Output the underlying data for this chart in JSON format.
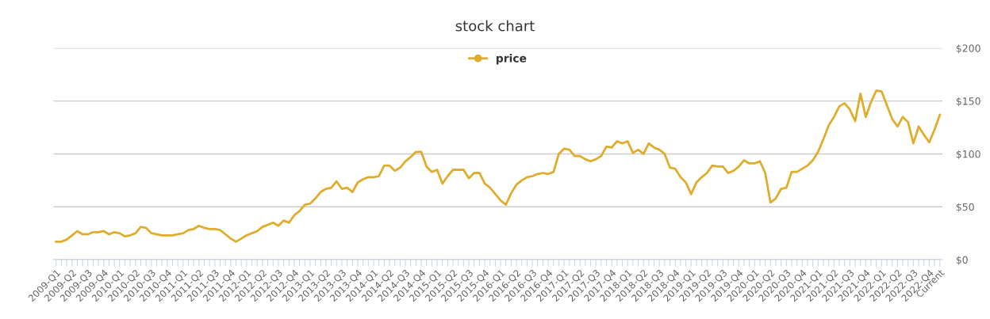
{
  "chart_data": {
    "type": "line",
    "title": "stock chart",
    "categories": [
      "2009-Q1",
      null,
      null,
      "2009-Q2",
      null,
      null,
      "2009-Q3",
      null,
      null,
      "2009-Q4",
      null,
      null,
      "2010-Q1",
      null,
      null,
      "2010-Q2",
      null,
      null,
      "2010-Q3",
      null,
      null,
      "2010-Q4",
      null,
      null,
      "2011-Q1",
      null,
      null,
      "2011-Q2",
      null,
      null,
      "2011-Q3",
      null,
      null,
      "2011-Q4",
      null,
      null,
      "2012-Q1",
      null,
      null,
      "2012-Q2",
      null,
      null,
      "2012-Q3",
      null,
      null,
      "2012-Q4",
      null,
      null,
      "2013-Q1",
      null,
      null,
      "2013-Q2",
      null,
      null,
      "2013-Q3",
      null,
      null,
      "2013-Q4",
      null,
      null,
      "2014-Q1",
      null,
      null,
      "2014-Q2",
      null,
      null,
      "2014-Q3",
      null,
      null,
      "2014-Q4",
      null,
      null,
      "2015-Q1",
      null,
      null,
      "2015-Q2",
      null,
      null,
      "2015-Q3",
      null,
      null,
      "2015-Q4",
      null,
      null,
      "2016-Q1",
      null,
      null,
      "2016-Q2",
      null,
      null,
      "2016-Q3",
      null,
      null,
      "2016-Q4",
      null,
      null,
      "2017-Q1",
      null,
      null,
      "2017-Q2",
      null,
      null,
      "2017-Q3",
      null,
      null,
      "2017-Q4",
      null,
      null,
      "2018-Q1",
      null,
      null,
      "2018-Q2",
      null,
      null,
      "2018-Q3",
      null,
      null,
      "2018-Q4",
      null,
      null,
      "2019-Q1",
      null,
      null,
      "2019-Q2",
      null,
      null,
      "2019-Q3",
      null,
      null,
      "2019-Q4",
      null,
      null,
      "2020-Q1",
      null,
      null,
      "2020-Q2",
      null,
      null,
      "2020-Q3",
      null,
      null,
      "2020-Q4",
      null,
      null,
      "2021-Q1",
      null,
      null,
      "2021-Q2",
      null,
      null,
      "2021-Q3",
      null,
      null,
      "2021-Q4",
      null,
      null,
      "2022-Q1",
      null,
      null,
      "2022-Q2",
      null,
      null,
      "2022-Q3",
      null,
      null,
      "2022-Q4",
      null,
      "Current"
    ],
    "series": [
      {
        "name": "price",
        "color": "#e0ac2b",
        "values": [
          17,
          17,
          19,
          23,
          27,
          24,
          24,
          26,
          26,
          27,
          24,
          26,
          25,
          22,
          23,
          25,
          31,
          30,
          25,
          24,
          23,
          23,
          23,
          24,
          25,
          28,
          29,
          32,
          30,
          29,
          29,
          28,
          24,
          20,
          17,
          20,
          23,
          25,
          27,
          31,
          33,
          35,
          32,
          37,
          35,
          42,
          46,
          52,
          53,
          58,
          64,
          67,
          68,
          74,
          67,
          68,
          64,
          73,
          76,
          78,
          78,
          79,
          89,
          89,
          84,
          87,
          93,
          97,
          102,
          102,
          88,
          83,
          85,
          72,
          79,
          85,
          85,
          85,
          77,
          82,
          82,
          72,
          68,
          62,
          56,
          52,
          63,
          71,
          75,
          78,
          79,
          81,
          82,
          81,
          83,
          100,
          105,
          104,
          98,
          98,
          95,
          93,
          95,
          98,
          107,
          106,
          112,
          110,
          112,
          101,
          104,
          100,
          110,
          106,
          104,
          100,
          87,
          86,
          78,
          73,
          62,
          73,
          78,
          82,
          89,
          88,
          88,
          82,
          84,
          88,
          94,
          91,
          91,
          93,
          82,
          54,
          58,
          67,
          68,
          83,
          83,
          86,
          89,
          94,
          102,
          114,
          127,
          135,
          145,
          148,
          142,
          131,
          157,
          135,
          149,
          160,
          159,
          146,
          133,
          126,
          135,
          130,
          110,
          126,
          118,
          111,
          123,
          137
        ]
      }
    ],
    "ylim": [
      0,
      200
    ],
    "yticks": [
      {
        "value": 0,
        "label": "$0"
      },
      {
        "value": 50,
        "label": "$50"
      },
      {
        "value": 100,
        "label": "$100"
      },
      {
        "value": 150,
        "label": "$150"
      },
      {
        "value": 200,
        "label": "$200"
      }
    ],
    "grid": "y",
    "legend": "top"
  }
}
